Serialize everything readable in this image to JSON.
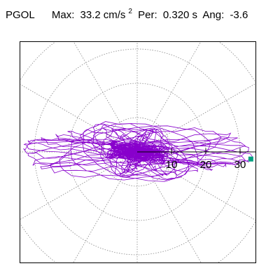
{
  "header": {
    "station": "PGOL",
    "max_label": "Max:",
    "max_value": "33.2",
    "max_unit_base": "cm/s",
    "max_unit_exp": "2",
    "per_label": "Per:",
    "per_value": "0.320 s",
    "ang_label": "Ang:",
    "ang_value": "-3.6"
  },
  "chart_data": {
    "type": "scatter",
    "title": "PGOL Max: 33.2 cm/s2 Per: 0.320 s Ang: -3.6",
    "radial_ticks": [
      10,
      20,
      30
    ],
    "ring_radii": [
      10,
      20,
      30,
      40
    ],
    "spoke_step_deg": 30,
    "grid": true,
    "max_amplitude": 33.2,
    "max_angle_deg": -3.6,
    "peak_marker": {
      "r": 33.2,
      "angle_deg": -3.6
    },
    "colors": {
      "trace": "#8800cc",
      "grid": "#888888",
      "axis": "#000000",
      "marker": "#00a080"
    }
  }
}
